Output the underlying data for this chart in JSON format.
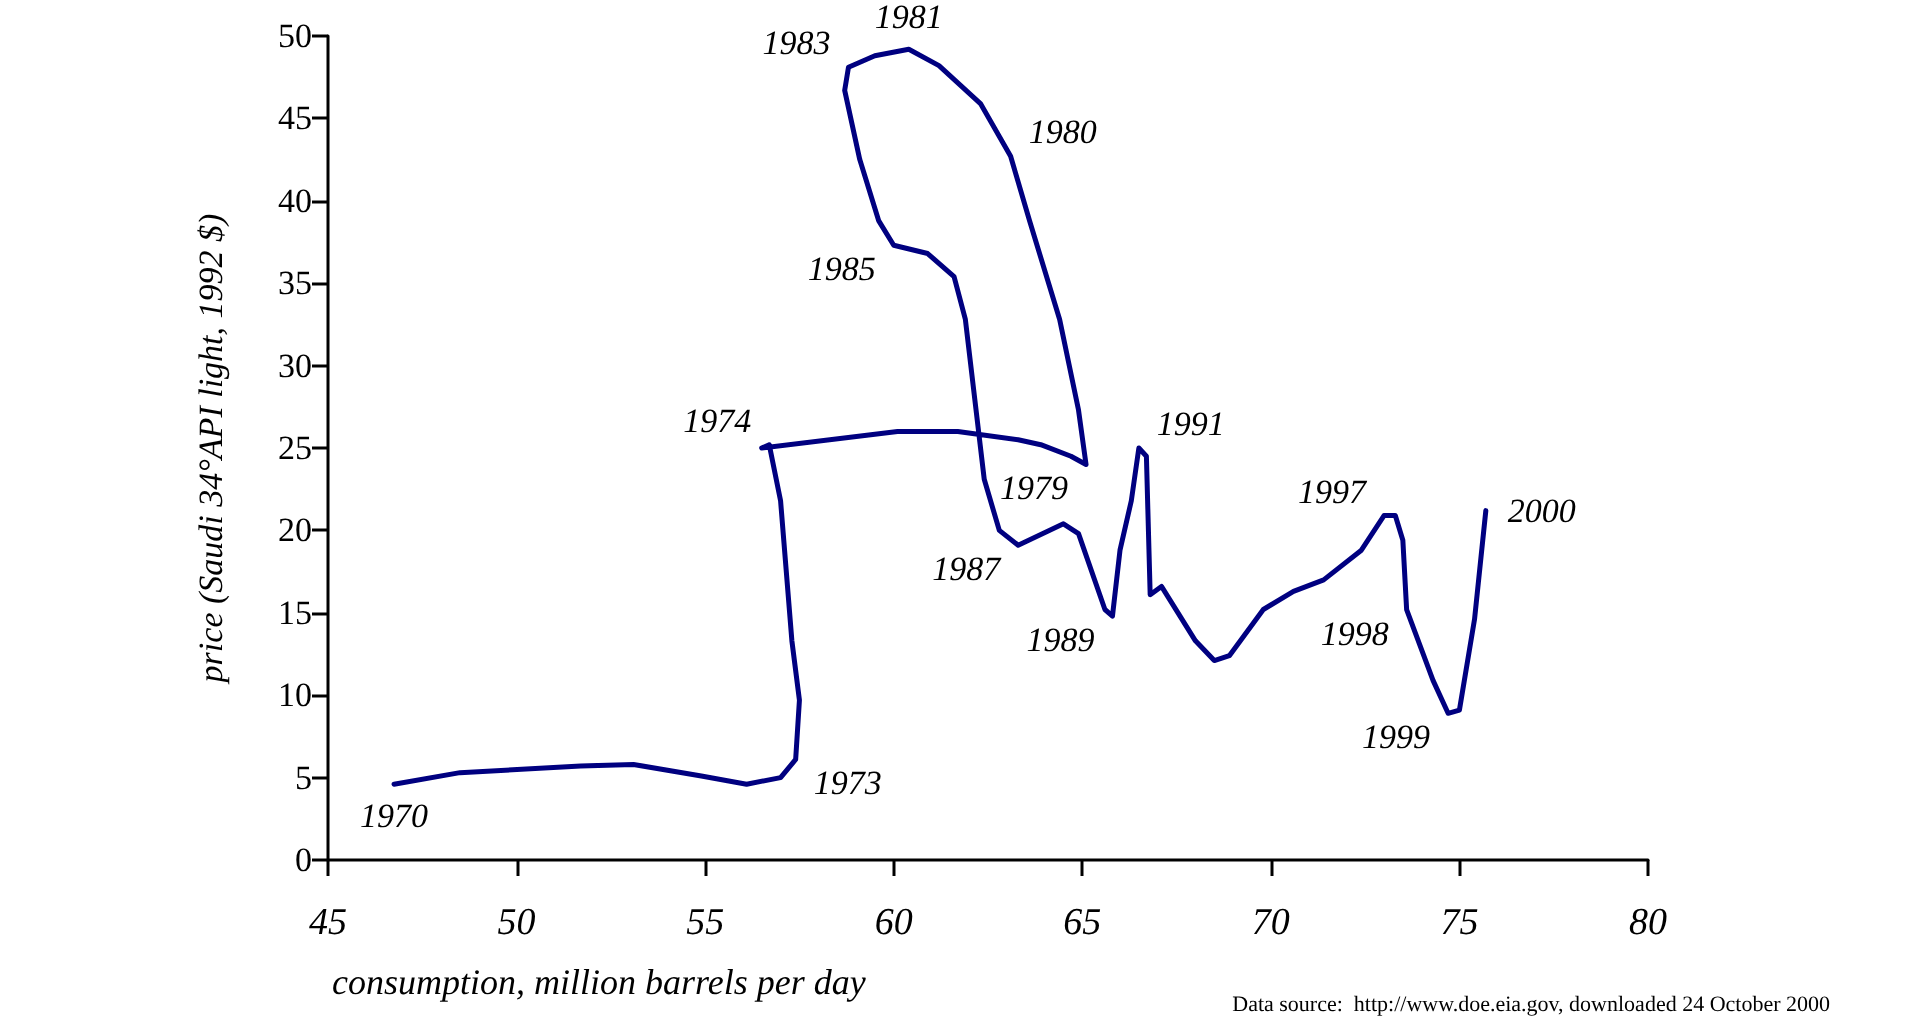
{
  "chart_data": {
    "type": "line",
    "xlabel": "consumption, million barrels per day",
    "ylabel": "price (Saudi 34°API light, 1992 $)",
    "xlim": [
      45,
      80
    ],
    "xticks": [
      45,
      50,
      55,
      60,
      65,
      70,
      75,
      80
    ],
    "ylim": [
      0,
      50
    ],
    "yticks": [
      0,
      5,
      10,
      15,
      20,
      25,
      30,
      35,
      40,
      45,
      50
    ],
    "grid": false,
    "marker": "none",
    "line_style": "solid",
    "series": [
      {
        "color": "#000080",
        "x": [
          46.75,
          48.5,
          51.7,
          53.1,
          54.9,
          56.1,
          57.0,
          57.4,
          57.5,
          57.3,
          57.0,
          56.7,
          56.5,
          60.1,
          61.7,
          63.3,
          63.9,
          64.7,
          65.1,
          64.9,
          64.4,
          63.6,
          63.1,
          62.3,
          61.2,
          60.4,
          59.5,
          58.8,
          58.7,
          59.1,
          59.6,
          60.0,
          60.9,
          61.6,
          61.9,
          62.4,
          62.8,
          63.3,
          64.5,
          64.9,
          65.6,
          65.8,
          66.0,
          66.3,
          66.5,
          66.7,
          66.8,
          67.1,
          68.0,
          68.5,
          68.9,
          69.8,
          70.6,
          71.4,
          72.4,
          73.0,
          73.3,
          73.5,
          73.6,
          74.3,
          74.7,
          75.0,
          75.4,
          75.7
        ],
        "values": [
          4.6,
          5.3,
          5.7,
          5.8,
          5.1,
          4.6,
          5.0,
          6.1,
          9.7,
          13.3,
          21.8,
          25.2,
          25.0,
          26.0,
          26.0,
          25.5,
          25.2,
          24.5,
          24.0,
          27.3,
          32.8,
          38.8,
          42.7,
          45.9,
          48.2,
          49.2,
          48.8,
          48.1,
          46.7,
          42.5,
          38.8,
          37.3,
          36.8,
          35.4,
          32.8,
          23.1,
          20.0,
          19.1,
          20.4,
          19.8,
          15.2,
          14.8,
          18.8,
          21.8,
          25.0,
          24.5,
          16.1,
          16.6,
          13.3,
          12.1,
          12.4,
          15.2,
          16.3,
          17.0,
          18.8,
          20.9,
          20.9,
          19.4,
          15.2,
          10.9,
          8.9,
          9.1,
          14.6,
          21.2
        ]
      }
    ],
    "annotations": [
      {
        "text": "1970",
        "x": 46.75,
        "y": 4.6
      },
      {
        "text": "1973",
        "x": 57.4,
        "y": 6.1
      },
      {
        "text": "1974",
        "x": 56.7,
        "y": 25.2
      },
      {
        "text": "1979",
        "x": 65.1,
        "y": 24.0
      },
      {
        "text": "1980",
        "x": 63.1,
        "y": 42.7
      },
      {
        "text": "1981",
        "x": 60.4,
        "y": 49.2
      },
      {
        "text": "1983",
        "x": 58.8,
        "y": 48.1
      },
      {
        "text": "1985",
        "x": 60.0,
        "y": 37.3
      },
      {
        "text": "1987",
        "x": 63.3,
        "y": 19.1
      },
      {
        "text": "1989",
        "x": 65.8,
        "y": 14.8
      },
      {
        "text": "1991",
        "x": 66.5,
        "y": 25.0
      },
      {
        "text": "1997",
        "x": 73.0,
        "y": 20.9
      },
      {
        "text": "1998",
        "x": 73.6,
        "y": 15.2
      },
      {
        "text": "1999",
        "x": 74.7,
        "y": 8.9
      },
      {
        "text": "2000",
        "x": 75.7,
        "y": 21.2
      },
      "Data source:  http://www.doe.eia.gov, downloaded 24 October 2000"
    ]
  }
}
